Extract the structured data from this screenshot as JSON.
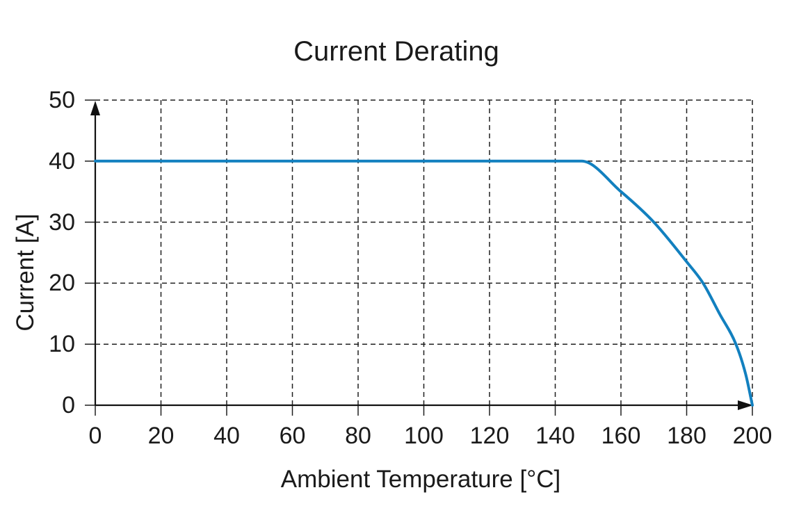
{
  "chart_data": {
    "type": "line",
    "title": "Current Derating",
    "xlabel": "Ambient Temperature [°C]",
    "ylabel": "Current [A]",
    "xlim": [
      0,
      200
    ],
    "ylim": [
      0,
      50
    ],
    "xticks": [
      0,
      20,
      40,
      60,
      80,
      100,
      120,
      140,
      160,
      180,
      200
    ],
    "yticks": [
      0,
      10,
      20,
      30,
      40,
      50
    ],
    "grid": "dashed",
    "legend_position": "none",
    "line_color": "#1280bf",
    "grid_color": "#1f1f1f",
    "axis_color": "#111111",
    "text_color": "#1a1a1a",
    "series": [
      {
        "name": "Current",
        "smooth": true,
        "points": [
          [
            0,
            40
          ],
          [
            100,
            40
          ],
          [
            140,
            40
          ],
          [
            148,
            40
          ],
          [
            160,
            35
          ],
          [
            170,
            30
          ],
          [
            180,
            23.5
          ],
          [
            185,
            20
          ],
          [
            190,
            15
          ],
          [
            195,
            10
          ],
          [
            198,
            5
          ],
          [
            200,
            0
          ]
        ]
      }
    ]
  }
}
